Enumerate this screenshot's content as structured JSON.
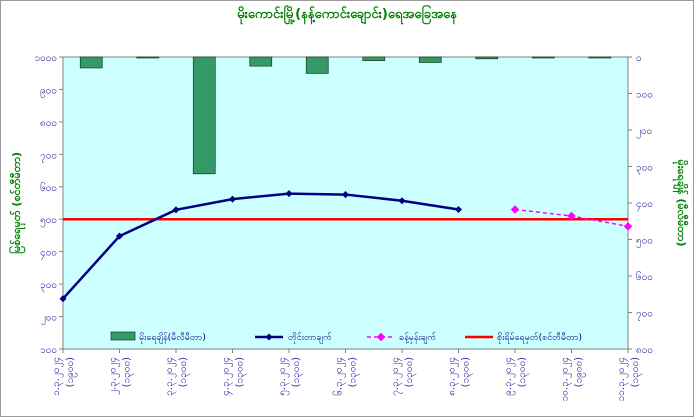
{
  "chart_data": {
    "type": "bar+line",
    "title": "မိုးကောင်းမြို့(နန့်ကောင်းချောင်း)ရေအခြေအနေ",
    "categories": [
      "၁.၃.၂၀၂၄\n(၁၉၀၀)",
      "၂.၃.၂၀၂၄\n(၁၃၀၀)",
      "၃.၃.၂၀၂၄\n(၁၃၀၀)",
      "၄.၃.၂၀၂၄\n(၁၃၀၀)",
      "၅.၃.၂၀၂၄\n(၁၃၀၀)",
      "၆.၃.၂၀၂၄\n(၁၃၀၀)",
      "၇.၃.၂၀၂၄\n(၁၃၀၀)",
      "၈.၃.၂၀၂၄\n(၁၃၀၀)",
      "၉.၃.၂၀၂၄\n(၁၃၀၀)",
      "၁၀.၃.၂၀၂၄\n(၁၉၀၀)",
      "၁၁.၃.၂၀၂၄\n(၁၃၀၀)"
    ],
    "y_left": {
      "label": "မြစ်ရေမှတ် (စင်တီမီတာ)",
      "range": [
        100,
        1000
      ],
      "ticks": [
        "၁၀၀",
        "၂၀၀",
        "၃၀၀",
        "၄၀၀",
        "၅၀၀",
        "၆၀၀",
        "၇၀၀",
        "၈၀၀",
        "၉၀၀",
        "၁၀၀၀"
      ]
    },
    "y_right": {
      "label": "မိုးရေချိန် (မီလီမီတာ)",
      "range": [
        0,
        800
      ],
      "inverted": true,
      "ticks": [
        "၀",
        "၁၀၀",
        "၂၀၀",
        "၃၀၀",
        "၄၀၀",
        "၅၀၀",
        "၆၀၀",
        "၇၀၀",
        "၈၀၀"
      ]
    },
    "legend": {
      "rain": "မိုးရေချိန်(မီလီမီတာ)",
      "actual": "တိုင်းတာချက်",
      "forecast": "ခန့်မှန်းချက်",
      "danger": "စိုးရိမ်ရေမှတ်(စင်တီမီတာ)"
    },
    "rainfall": [
      30,
      0,
      320,
      25,
      45,
      10,
      15,
      5,
      0,
      0,
      0
    ],
    "actual_level": [
      255,
      448,
      529,
      562,
      579,
      576,
      557,
      530,
      null,
      null,
      null
    ],
    "forecast_level": [
      null,
      null,
      null,
      null,
      null,
      null,
      null,
      null,
      530,
      510,
      478
    ],
    "danger_level": 500,
    "grid": false,
    "legend_position": "bottom"
  },
  "colors": {
    "plot_bg": "#ccffff",
    "bar": "#339966",
    "actual": "#000080",
    "forecast": "#ff00ff",
    "danger": "#ff0000",
    "text": "#008000",
    "tick": "#2020a0"
  }
}
